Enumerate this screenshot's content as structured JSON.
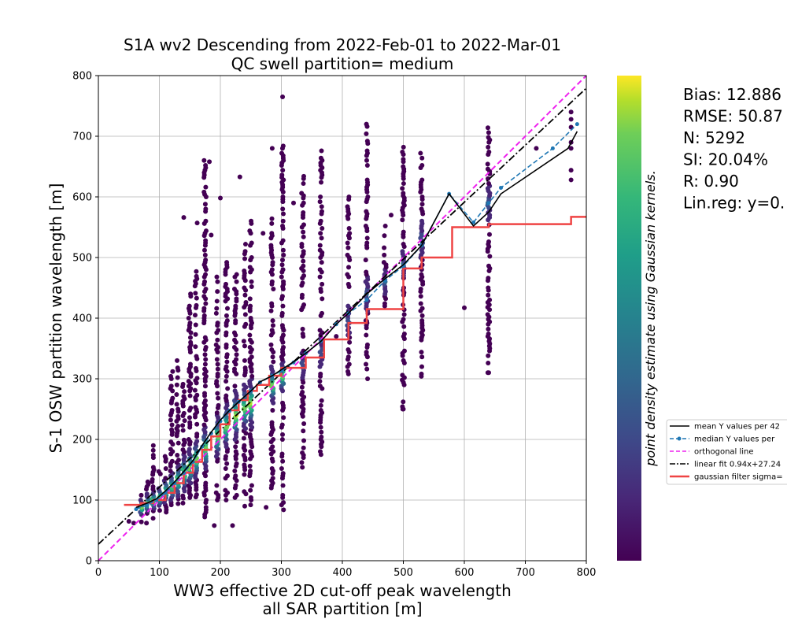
{
  "chart_data": {
    "type": "scatter",
    "title": "S1A wv2 Descending from 2022-Feb-01 to 2022-Mar-01",
    "subtitle": "QC swell partition= medium",
    "xlabel_line1": "WW3 effective 2D cut-off peak wavelength",
    "xlabel_line2": "all SAR partition [m]",
    "ylabel": "S-1 OSW partition wavelength [m]",
    "colorbar_label": "point density estimate using Gaussian kernels.",
    "xlim": [
      0,
      800
    ],
    "ylim": [
      0,
      800
    ],
    "xticks": [
      "0",
      "100",
      "200",
      "300",
      "400",
      "500",
      "600",
      "700",
      "800"
    ],
    "yticks": [
      "0",
      "100",
      "200",
      "300",
      "400",
      "500",
      "600",
      "700",
      "800"
    ],
    "grid": true,
    "stats": [
      "Bias: 12.886",
      "RMSE: 50.87",
      "N: 5292",
      "SI: 20.04%",
      "R: 0.90",
      "Lin.reg: y=0."
    ],
    "legend": {
      "placement": "right-outside",
      "entries": [
        {
          "label": "mean Y values per 42",
          "color": "#000000",
          "style": "solid"
        },
        {
          "label": "median Y values per",
          "color": "#1f77b4",
          "style": "dashed-marker"
        },
        {
          "label": "orthogonal line",
          "color": "#ee22ee",
          "style": "dashed"
        },
        {
          "label": "linear fit 0.94x+27.24",
          "color": "#000000",
          "style": "dashdot"
        },
        {
          "label": "gaussian filter sigma=",
          "color": "#ef4444",
          "style": "solid-thick"
        }
      ]
    },
    "linear_fit": {
      "slope": 0.94,
      "intercept": 27.24
    },
    "mean_line": {
      "x": [
        62,
        80,
        95,
        110,
        125,
        140,
        155,
        170,
        185,
        200,
        215,
        230,
        250,
        265,
        285,
        300,
        320,
        340,
        365,
        390,
        410,
        440,
        470,
        500,
        530,
        575,
        615,
        640,
        660,
        770,
        785
      ],
      "y": [
        88,
        95,
        102,
        115,
        130,
        147,
        165,
        190,
        212,
        232,
        248,
        262,
        280,
        295,
        305,
        315,
        328,
        342,
        362,
        390,
        408,
        440,
        465,
        488,
        520,
        605,
        552,
        575,
        605,
        680,
        708
      ]
    },
    "median_line": {
      "x": [
        62,
        80,
        95,
        110,
        125,
        140,
        155,
        170,
        185,
        200,
        215,
        230,
        250,
        265,
        285,
        300,
        320,
        340,
        365,
        390,
        410,
        440,
        470,
        500,
        530,
        575,
        615,
        640,
        660,
        745,
        785
      ],
      "y": [
        85,
        92,
        100,
        112,
        128,
        145,
        163,
        188,
        210,
        230,
        247,
        262,
        280,
        294,
        305,
        313,
        327,
        342,
        362,
        390,
        408,
        430,
        462,
        486,
        520,
        605,
        558,
        590,
        615,
        680,
        720
      ]
    },
    "gaussian_filter_line": {
      "x": [
        42,
        70,
        70,
        90,
        90,
        110,
        110,
        125,
        125,
        140,
        140,
        155,
        155,
        170,
        170,
        185,
        185,
        200,
        200,
        215,
        215,
        230,
        230,
        245,
        245,
        260,
        260,
        280,
        280,
        300,
        300,
        340,
        340,
        370,
        370,
        410,
        410,
        440,
        440,
        500,
        500,
        530,
        530,
        580,
        580,
        640,
        640,
        775,
        775,
        800
      ],
      "y": [
        92,
        92,
        95,
        95,
        100,
        100,
        112,
        112,
        128,
        128,
        145,
        145,
        163,
        163,
        183,
        183,
        205,
        205,
        225,
        225,
        248,
        248,
        265,
        265,
        280,
        280,
        290,
        290,
        305,
        305,
        318,
        318,
        335,
        335,
        365,
        365,
        392,
        392,
        415,
        415,
        482,
        482,
        500,
        500,
        550,
        550,
        555,
        555,
        567,
        567
      ]
    },
    "columns": [
      {
        "x": 70,
        "min": 60,
        "max": 110,
        "core": [
          75,
          100
        ]
      },
      {
        "x": 80,
        "min": 62,
        "max": 130,
        "core": [
          80,
          110
        ]
      },
      {
        "x": 90,
        "min": 70,
        "max": 190,
        "core": [
          85,
          115
        ]
      },
      {
        "x": 100,
        "min": 75,
        "max": 150,
        "core": [
          90,
          120
        ]
      },
      {
        "x": 110,
        "min": 80,
        "max": 175,
        "core": [
          95,
          135
        ]
      },
      {
        "x": 120,
        "min": 88,
        "max": 320,
        "core": [
          100,
          145
        ]
      },
      {
        "x": 130,
        "min": 90,
        "max": 330,
        "core": [
          105,
          160
        ]
      },
      {
        "x": 140,
        "min": 95,
        "max": 300,
        "core": [
          115,
          175
        ]
      },
      {
        "x": 150,
        "min": 100,
        "max": 440,
        "core": [
          125,
          185
        ]
      },
      {
        "x": 160,
        "min": 105,
        "max": 480,
        "core": [
          135,
          200
        ]
      },
      {
        "x": 175,
        "min": 60,
        "max": 660,
        "core": [
          150,
          220
        ]
      },
      {
        "x": 195,
        "min": 100,
        "max": 470,
        "core": [
          170,
          240
        ]
      },
      {
        "x": 210,
        "min": 100,
        "max": 500,
        "core": [
          185,
          260
        ]
      },
      {
        "x": 225,
        "min": 100,
        "max": 480,
        "core": [
          200,
          280
        ]
      },
      {
        "x": 240,
        "min": 110,
        "max": 530,
        "core": [
          215,
          290
        ]
      },
      {
        "x": 250,
        "min": 80,
        "max": 570,
        "core": [
          220,
          300
        ]
      },
      {
        "x": 285,
        "min": 120,
        "max": 585,
        "core": [
          260,
          320
        ]
      },
      {
        "x": 302,
        "min": 80,
        "max": 690,
        "core": [
          280,
          330
        ]
      },
      {
        "x": 335,
        "min": 150,
        "max": 635,
        "core": [
          300,
          345
        ]
      },
      {
        "x": 365,
        "min": 180,
        "max": 682,
        "core": [
          320,
          370
        ]
      },
      {
        "x": 410,
        "min": 300,
        "max": 612,
        "core": [
          370,
          420
        ]
      },
      {
        "x": 440,
        "min": 300,
        "max": 730,
        "core": [
          410,
          470
        ]
      },
      {
        "x": 470,
        "min": 420,
        "max": 570,
        "core": [
          440,
          480
        ]
      },
      {
        "x": 500,
        "min": 250,
        "max": 682,
        "core": [
          470,
          510
        ]
      },
      {
        "x": 530,
        "min": 300,
        "max": 685,
        "core": [
          500,
          560
        ]
      },
      {
        "x": 640,
        "min": 310,
        "max": 715,
        "core": [
          560,
          620
        ]
      }
    ],
    "outliers": [
      {
        "x": 302,
        "y": 765
      },
      {
        "x": 182,
        "y": 658
      },
      {
        "x": 140,
        "y": 566
      },
      {
        "x": 162,
        "y": 557
      },
      {
        "x": 185,
        "y": 537
      },
      {
        "x": 232,
        "y": 633
      },
      {
        "x": 270,
        "y": 540
      },
      {
        "x": 285,
        "y": 680
      },
      {
        "x": 200,
        "y": 598
      },
      {
        "x": 480,
        "y": 570
      },
      {
        "x": 600,
        "y": 417
      },
      {
        "x": 640,
        "y": 310
      },
      {
        "x": 718,
        "y": 680
      },
      {
        "x": 775,
        "y": 740
      },
      {
        "x": 775,
        "y": 728
      },
      {
        "x": 775,
        "y": 715
      },
      {
        "x": 775,
        "y": 690
      },
      {
        "x": 775,
        "y": 680
      },
      {
        "x": 775,
        "y": 644
      },
      {
        "x": 775,
        "y": 628
      },
      {
        "x": 390,
        "y": 370
      },
      {
        "x": 440,
        "y": 395
      },
      {
        "x": 320,
        "y": 590
      },
      {
        "x": 500,
        "y": 250
      },
      {
        "x": 530,
        "y": 368
      },
      {
        "x": 365,
        "y": 175
      },
      {
        "x": 240,
        "y": 90
      },
      {
        "x": 275,
        "y": 88
      },
      {
        "x": 220,
        "y": 58
      },
      {
        "x": 190,
        "y": 58
      },
      {
        "x": 50,
        "y": 65
      },
      {
        "x": 58,
        "y": 62
      }
    ]
  }
}
